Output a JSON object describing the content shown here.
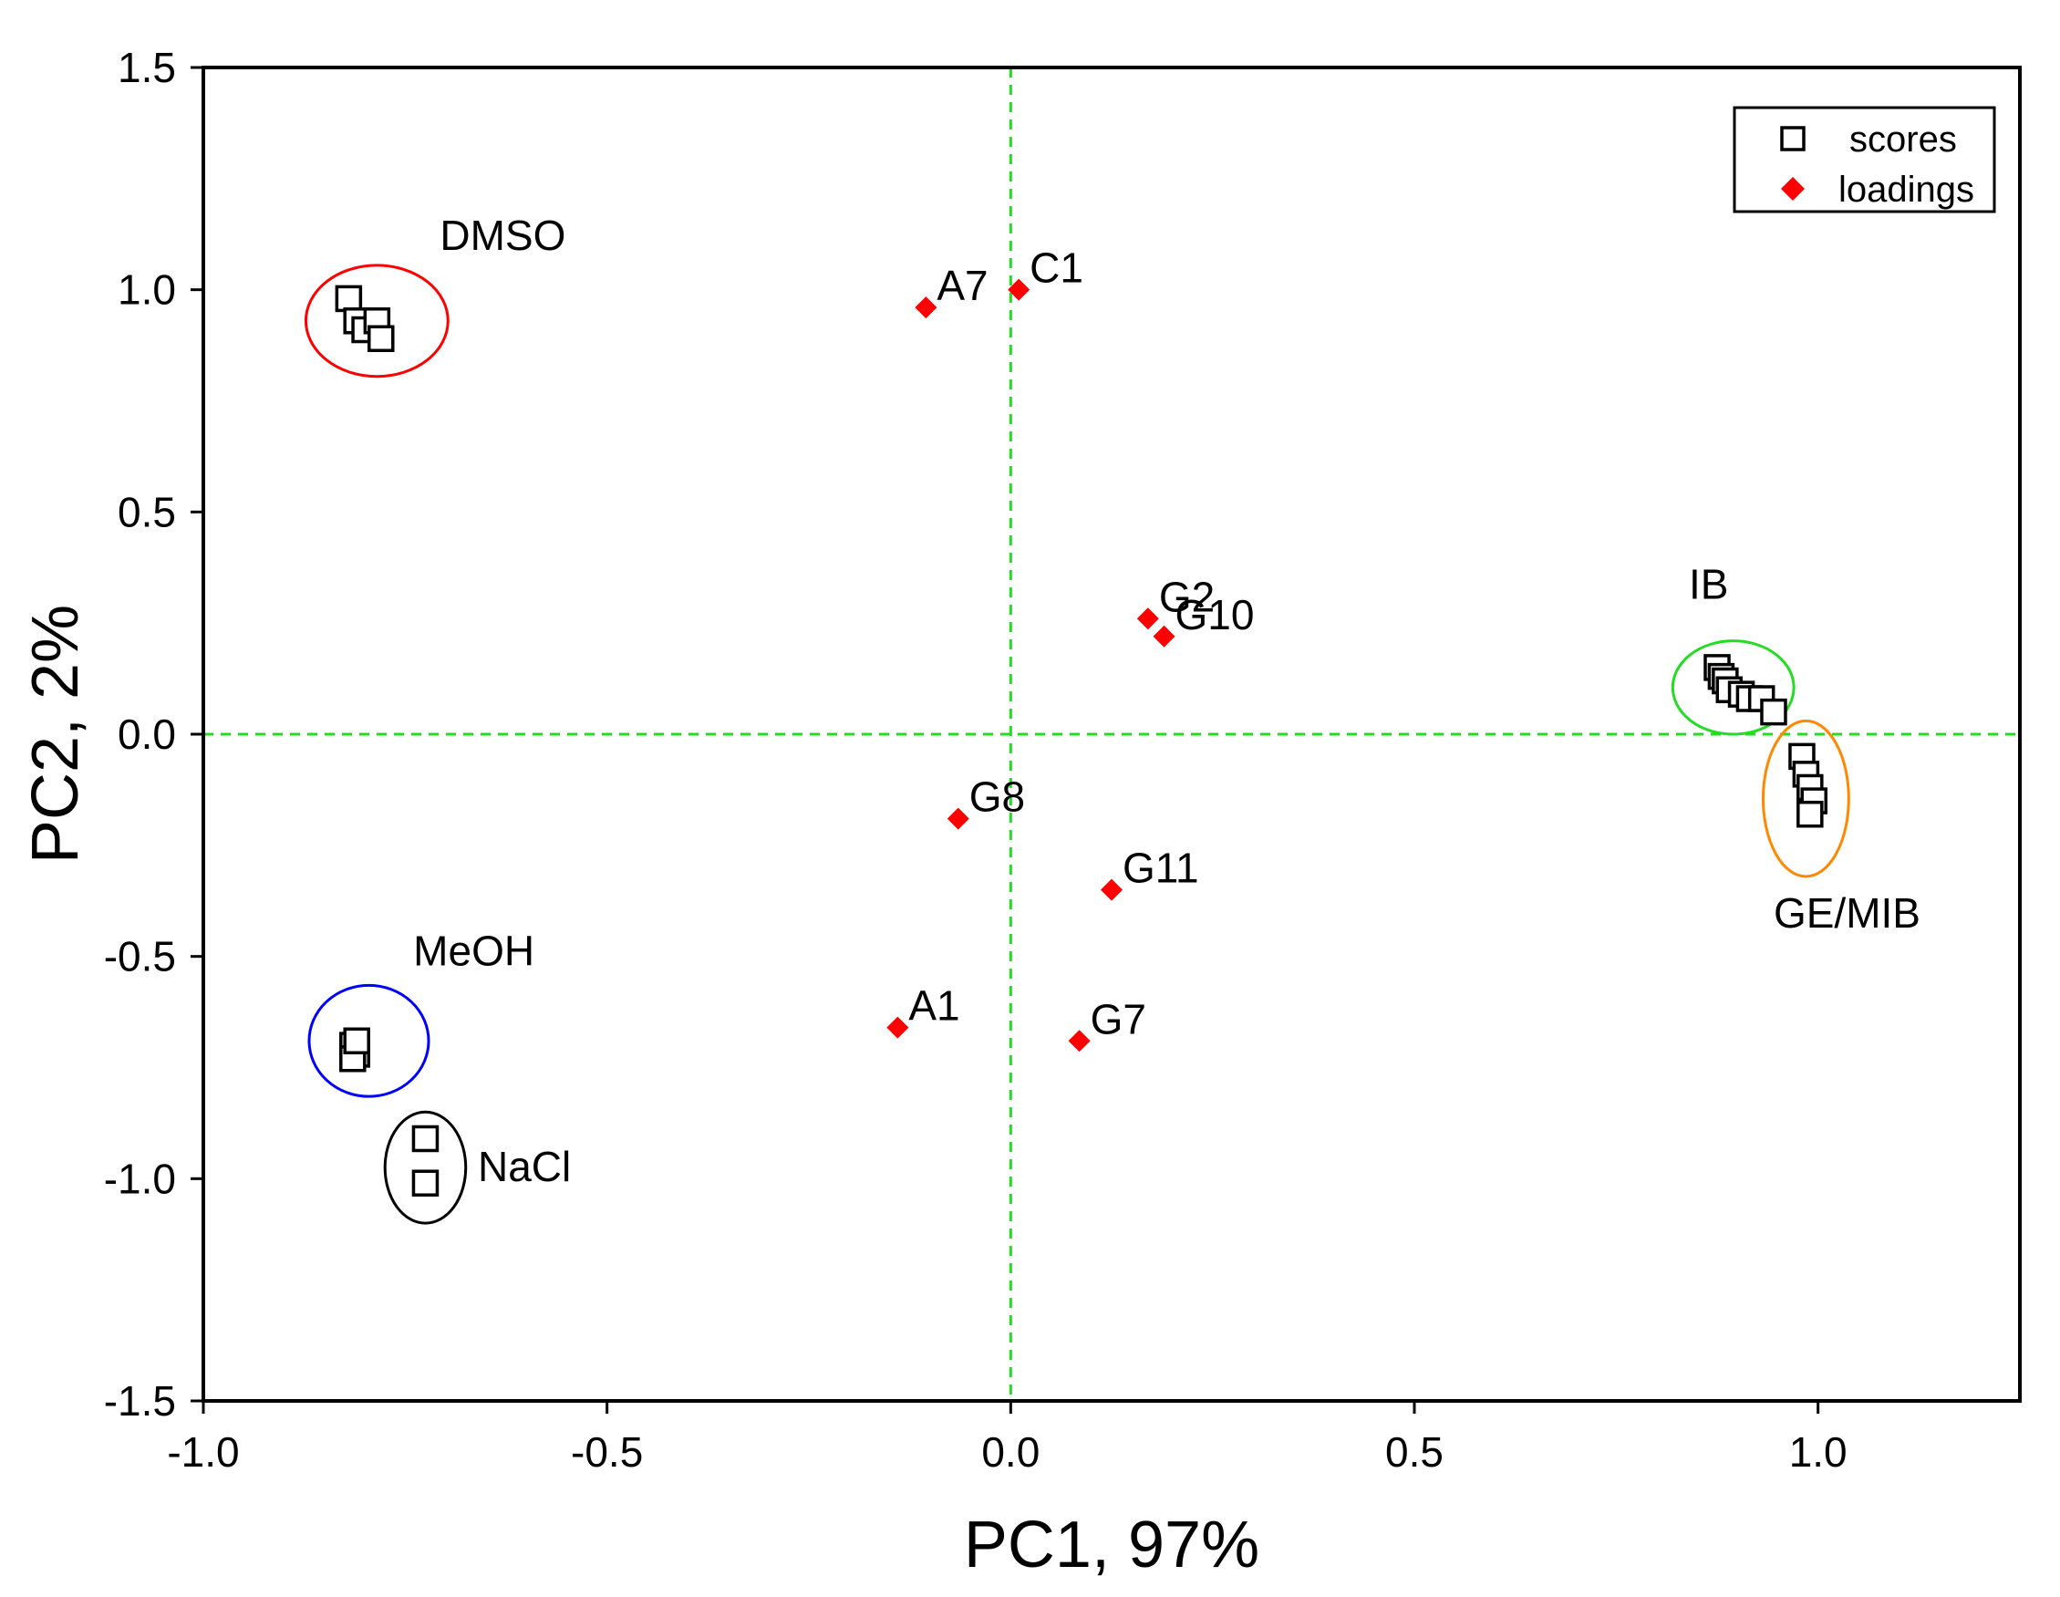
{
  "chart_data": {
    "type": "scatter",
    "title": "",
    "xlabel": "PC1, 97%",
    "ylabel": "PC2, 2%",
    "xlim": [
      -1.0,
      1.25
    ],
    "ylim": [
      -1.5,
      1.5
    ],
    "x_ticks": [
      -1.0,
      -0.5,
      0.0,
      0.5,
      1.0
    ],
    "x_tick_labels": [
      "-1.0",
      "-0.5",
      "0.0",
      "0.5",
      "1.0"
    ],
    "y_ticks": [
      1.5,
      1.0,
      0.5,
      0.0,
      -0.5,
      -1.0,
      -1.5
    ],
    "y_tick_labels": [
      "1.5",
      "1.0",
      "0.5",
      "0.0",
      "-0.5",
      "-1.0",
      "-1.5"
    ],
    "grid": false,
    "zero_lines": {
      "color": "#22dd22",
      "style": "dashed"
    },
    "legend": {
      "position": "top-right",
      "entries": [
        {
          "label": "scores",
          "marker": "open-square",
          "color": "#000000"
        },
        {
          "label": "loadings",
          "marker": "diamond",
          "color": "#ff0000"
        }
      ]
    },
    "series": [
      {
        "name": "scores",
        "marker": "open-square",
        "color": "#000000",
        "points": [
          {
            "x": -0.82,
            "y": 0.98
          },
          {
            "x": -0.81,
            "y": 0.93
          },
          {
            "x": -0.8,
            "y": 0.91
          },
          {
            "x": -0.785,
            "y": 0.93
          },
          {
            "x": -0.78,
            "y": 0.89
          },
          {
            "x": -0.815,
            "y": -0.7
          },
          {
            "x": -0.81,
            "y": -0.72
          },
          {
            "x": -0.815,
            "y": -0.73
          },
          {
            "x": -0.81,
            "y": -0.69
          },
          {
            "x": -0.725,
            "y": -0.91
          },
          {
            "x": -0.725,
            "y": -1.01
          },
          {
            "x": 0.875,
            "y": 0.15
          },
          {
            "x": 0.88,
            "y": 0.13
          },
          {
            "x": 0.885,
            "y": 0.12
          },
          {
            "x": 0.89,
            "y": 0.1
          },
          {
            "x": 0.905,
            "y": 0.09
          },
          {
            "x": 0.915,
            "y": 0.08
          },
          {
            "x": 0.93,
            "y": 0.08
          },
          {
            "x": 0.945,
            "y": 0.05
          },
          {
            "x": 0.98,
            "y": -0.05
          },
          {
            "x": 0.985,
            "y": -0.09
          },
          {
            "x": 0.99,
            "y": -0.12
          },
          {
            "x": 0.995,
            "y": -0.15
          },
          {
            "x": 0.99,
            "y": -0.18
          }
        ]
      },
      {
        "name": "loadings",
        "marker": "diamond",
        "color": "#ff0000",
        "points": [
          {
            "label": "A7",
            "x": -0.105,
            "y": 0.96
          },
          {
            "label": "C1",
            "x": 0.01,
            "y": 1.0
          },
          {
            "label": "G2",
            "x": 0.17,
            "y": 0.26
          },
          {
            "label": "G10",
            "x": 0.19,
            "y": 0.22
          },
          {
            "label": "G8",
            "x": -0.065,
            "y": -0.19
          },
          {
            "label": "G11",
            "x": 0.125,
            "y": -0.35
          },
          {
            "label": "A1",
            "x": -0.14,
            "y": -0.66
          },
          {
            "label": "G7",
            "x": 0.085,
            "y": -0.69
          }
        ]
      }
    ],
    "groups": [
      {
        "label": "DMSO",
        "color": "#ff0000",
        "cx": -0.785,
        "cy": 0.93,
        "rx": 0.088,
        "ry": 0.125
      },
      {
        "label": "MeOH",
        "color": "#0000ff",
        "cx": -0.795,
        "cy": -0.69,
        "rx": 0.074,
        "ry": 0.125
      },
      {
        "label": "NaCl",
        "color": "#000000",
        "cx": -0.725,
        "cy": -0.975,
        "rx": 0.05,
        "ry": 0.125
      },
      {
        "label": "IB",
        "color": "#22dd22",
        "cx": 0.895,
        "cy": 0.105,
        "rx": 0.075,
        "ry": 0.105
      },
      {
        "label": "GE/MIB",
        "color": "#ff8800",
        "cx": 0.985,
        "cy": -0.145,
        "rx": 0.053,
        "ry": 0.175
      }
    ]
  }
}
